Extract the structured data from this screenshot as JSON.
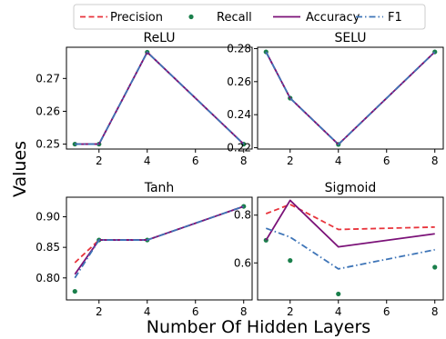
{
  "chart_data": {
    "type": "line",
    "xlabel": "Number Of Hidden Layers",
    "ylabel": "Values",
    "legend": {
      "placement": "top-center",
      "entries": [
        {
          "name": "Precision",
          "color": "#e8333b",
          "style": "dashed"
        },
        {
          "name": "Recall",
          "color": "#1a7f4b",
          "style": "markers"
        },
        {
          "name": "Accuracy",
          "color": "#7b1278",
          "style": "solid"
        },
        {
          "name": "F1",
          "color": "#3d74b7",
          "style": "dashdot"
        }
      ]
    },
    "panels": [
      {
        "title": "ReLU",
        "x": [
          1,
          2,
          4,
          8
        ],
        "xticks": [
          2,
          4,
          6,
          8
        ],
        "xlim": [
          0.65,
          8.35
        ],
        "ylim": [
          0.2485,
          0.2795
        ],
        "yticks": [
          0.25,
          0.26,
          0.27
        ],
        "ytick_labels": [
          "0.25",
          "0.26",
          "0.27"
        ],
        "series": [
          {
            "name": "Precision",
            "values": [
              0.25,
              0.25,
              0.278,
              0.25
            ]
          },
          {
            "name": "Recall",
            "values": [
              0.25,
              0.25,
              0.278,
              0.25
            ]
          },
          {
            "name": "Accuracy",
            "values": [
              0.25,
              0.25,
              0.278,
              0.25
            ]
          },
          {
            "name": "F1",
            "values": [
              0.25,
              0.25,
              0.278,
              0.25
            ]
          }
        ]
      },
      {
        "title": "SELU",
        "x": [
          1,
          2,
          4,
          8
        ],
        "xticks": [
          2,
          4,
          6,
          8
        ],
        "xlim": [
          0.65,
          8.35
        ],
        "ylim": [
          0.2192,
          0.2808
        ],
        "yticks": [
          0.22,
          0.24,
          0.26,
          0.28
        ],
        "ytick_labels": [
          "0.22",
          "0.24",
          "0.26",
          "0.28"
        ],
        "series": [
          {
            "name": "Precision",
            "values": [
              0.278,
              0.25,
              0.222,
              0.278
            ]
          },
          {
            "name": "Recall",
            "values": [
              0.278,
              0.25,
              0.222,
              0.278
            ]
          },
          {
            "name": "Accuracy",
            "values": [
              0.278,
              0.25,
              0.222,
              0.278
            ]
          },
          {
            "name": "F1",
            "values": [
              0.278,
              0.25,
              0.222,
              0.278
            ]
          }
        ]
      },
      {
        "title": "Tanh",
        "x": [
          1,
          2,
          4,
          8
        ],
        "xticks": [
          2,
          4,
          6,
          8
        ],
        "xlim": [
          0.65,
          8.35
        ],
        "ylim": [
          0.764,
          0.932
        ],
        "yticks": [
          0.8,
          0.85,
          0.9
        ],
        "ytick_labels": [
          "0.80",
          "0.85",
          "0.90"
        ],
        "series": [
          {
            "name": "Precision",
            "values": [
              0.825,
              0.862,
              0.862,
              0.917
            ]
          },
          {
            "name": "Recall",
            "values": [
              0.778,
              0.862,
              0.862,
              0.917
            ]
          },
          {
            "name": "Accuracy",
            "values": [
              0.806,
              0.862,
              0.862,
              0.917
            ]
          },
          {
            "name": "F1",
            "values": [
              0.8,
              0.862,
              0.862,
              0.917
            ]
          }
        ]
      },
      {
        "title": "Sigmoid",
        "x": [
          1,
          2,
          4,
          8
        ],
        "xticks": [
          2,
          4,
          6,
          8
        ],
        "xlim": [
          0.65,
          8.35
        ],
        "ylim": [
          0.445,
          0.875
        ],
        "yticks": [
          0.6,
          0.8
        ],
        "ytick_labels": [
          "0.6",
          "0.8"
        ],
        "series": [
          {
            "name": "Precision",
            "values": [
              0.806,
              0.845,
              0.74,
              0.75
            ]
          },
          {
            "name": "Recall",
            "values": [
              0.695,
              0.61,
              0.47,
              0.582
            ]
          },
          {
            "name": "Accuracy",
            "values": [
              0.695,
              0.862,
              0.667,
              0.722
            ]
          },
          {
            "name": "F1",
            "values": [
              0.745,
              0.708,
              0.575,
              0.655
            ]
          }
        ]
      }
    ]
  }
}
